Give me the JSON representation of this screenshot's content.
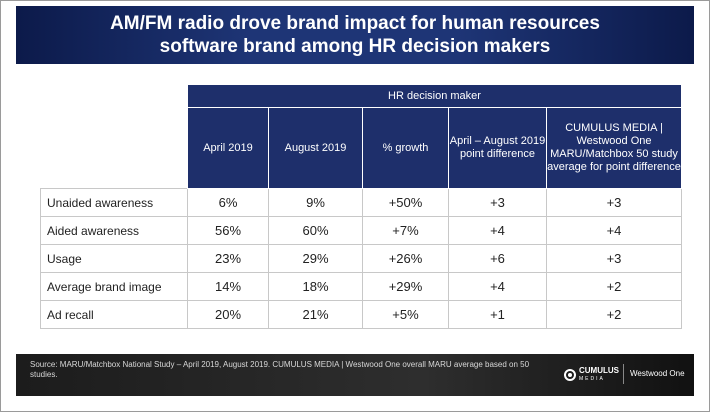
{
  "title": {
    "line1": "AM/FM radio drove brand impact for human resources",
    "line2": "software brand among HR decision makers"
  },
  "table": {
    "group_header": "HR decision maker",
    "columns": [
      "April 2019",
      "August 2019",
      "% growth",
      "April – August 2019 point difference",
      "CUMULUS MEDIA | Westwood One MARU/Matchbox 50 study average for point difference"
    ],
    "rows": [
      {
        "label": "Unaided awareness",
        "values": [
          "6%",
          "9%",
          "+50%",
          "+3",
          "+3"
        ]
      },
      {
        "label": "Aided awareness",
        "values": [
          "56%",
          "60%",
          "+7%",
          "+4",
          "+4"
        ]
      },
      {
        "label": "Usage",
        "values": [
          "23%",
          "29%",
          "+26%",
          "+6",
          "+3"
        ]
      },
      {
        "label": "Average brand image",
        "values": [
          "14%",
          "18%",
          "+29%",
          "+4",
          "+2"
        ]
      },
      {
        "label": "Ad recall",
        "values": [
          "20%",
          "21%",
          "+5%",
          "+1",
          "+2"
        ]
      }
    ]
  },
  "footer": {
    "source": "Source: MARU/Matchbox National Study – April 2019, August 2019. CUMULUS MEDIA | Westwood One overall MARU average based on 50 studies.",
    "logo_cumulus": "CUMULUS",
    "logo_cumulus_sub": "MEDIA",
    "logo_westwood": "Westwood One"
  },
  "colors": {
    "header_bg": "#1e2f6b",
    "banner_bg": "#1e3576",
    "footer_bg": "#2e2e2e"
  }
}
